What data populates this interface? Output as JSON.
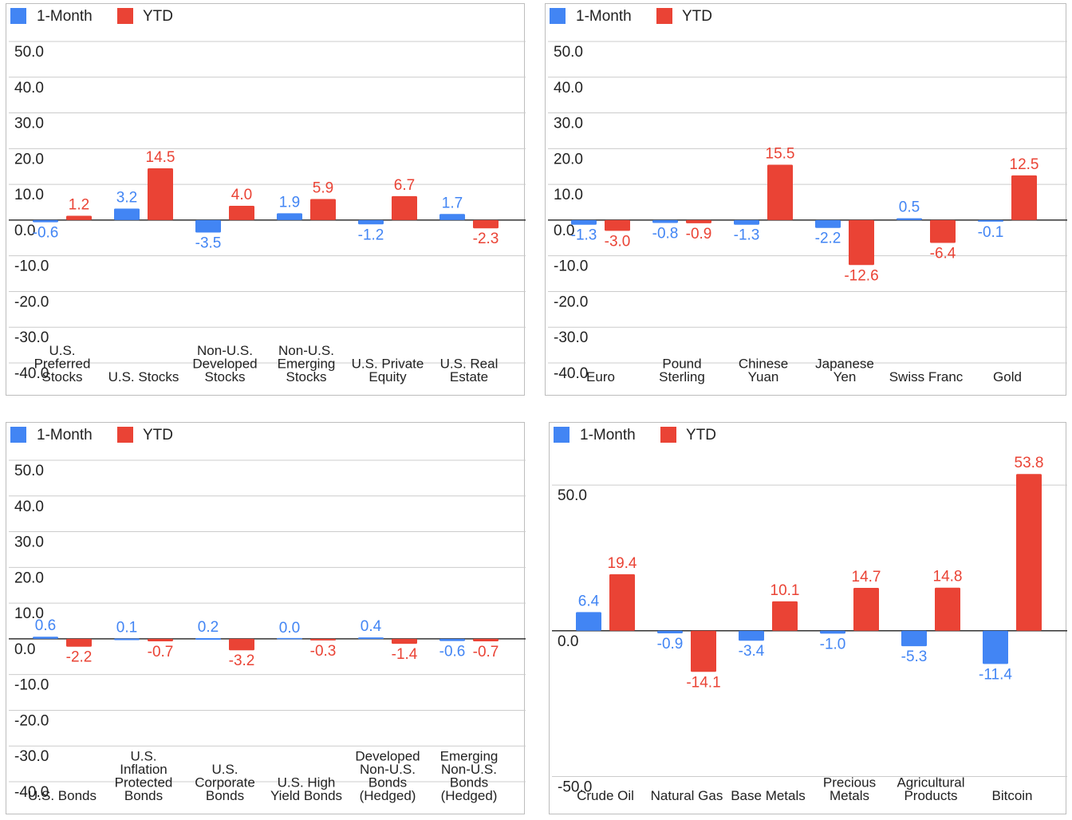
{
  "legend": {
    "series_1": "1-Month",
    "series_2": "YTD"
  },
  "colors": {
    "series_1": "#4285f4",
    "series_2": "#ea4335",
    "grid": "#cccccc",
    "zero": "#333333",
    "text": "#222222"
  },
  "chart_data": [
    {
      "type": "bar",
      "legend_position": "top-left",
      "grid": true,
      "ylim": [
        -40,
        50
      ],
      "yticks": [
        "50.0",
        "40.0",
        "30.0",
        "20.0",
        "10.0",
        "0.0",
        "-10.0",
        "-20.0",
        "-30.0",
        "-40.0"
      ],
      "categories": [
        [
          "U.S.",
          "Preferred",
          "Stocks"
        ],
        [
          "U.S. Stocks"
        ],
        [
          "Non-U.S.",
          "Developed",
          "Stocks"
        ],
        [
          "Non-U.S.",
          "Emerging",
          "Stocks"
        ],
        [
          "U.S. Private",
          "Equity"
        ],
        [
          "U.S. Real",
          "Estate"
        ]
      ],
      "series": [
        {
          "name": "1-Month",
          "values": [
            -0.6,
            3.2,
            -3.5,
            1.9,
            -1.2,
            1.7
          ],
          "labels": [
            "-0.6",
            "3.2",
            "-3.5",
            "1.9",
            "-1.2",
            "1.7"
          ]
        },
        {
          "name": "YTD",
          "values": [
            1.2,
            14.5,
            4.0,
            5.9,
            6.7,
            -2.3
          ],
          "labels": [
            "1.2",
            "14.5",
            "4.0",
            "5.9",
            "6.7",
            "-2.3"
          ]
        }
      ]
    },
    {
      "type": "bar",
      "legend_position": "top-left",
      "grid": true,
      "ylim": [
        -40,
        50
      ],
      "yticks": [
        "50.0",
        "40.0",
        "30.0",
        "20.0",
        "10.0",
        "0.0",
        "-10.0",
        "-20.0",
        "-30.0",
        "-40.0"
      ],
      "categories": [
        [
          "Euro"
        ],
        [
          "Pound",
          "Sterling"
        ],
        [
          "Chinese",
          "Yuan"
        ],
        [
          "Japanese",
          "Yen"
        ],
        [
          "Swiss Franc"
        ],
        [
          "Gold"
        ]
      ],
      "series": [
        {
          "name": "1-Month",
          "values": [
            -1.3,
            -0.8,
            -1.3,
            -2.2,
            0.5,
            -0.1
          ],
          "labels": [
            "-1.3",
            "-0.8",
            "-1.3",
            "-2.2",
            "0.5",
            "-0.1"
          ]
        },
        {
          "name": "YTD",
          "values": [
            -3.0,
            -0.9,
            15.5,
            -12.6,
            -6.4,
            12.5
          ],
          "labels": [
            "-3.0",
            "-0.9",
            "15.5",
            "-12.6",
            "-6.4",
            "12.5"
          ]
        }
      ]
    },
    {
      "type": "bar",
      "legend_position": "top-left",
      "grid": true,
      "ylim": [
        -40,
        50
      ],
      "yticks": [
        "50.0",
        "40.0",
        "30.0",
        "20.0",
        "10.0",
        "0.0",
        "-10.0",
        "-20.0",
        "-30.0",
        "-40.0"
      ],
      "categories": [
        [
          "U.S. Bonds"
        ],
        [
          "U.S.",
          "Inflation",
          "Protected",
          "Bonds"
        ],
        [
          "U.S.",
          "Corporate",
          "Bonds"
        ],
        [
          "U.S. High",
          "Yield Bonds"
        ],
        [
          "Developed",
          "Non-U.S.",
          "Bonds",
          "(Hedged)"
        ],
        [
          "Emerging",
          "Non-U.S.",
          "Bonds",
          "(Hedged)"
        ]
      ],
      "series": [
        {
          "name": "1-Month",
          "values": [
            0.6,
            0.1,
            0.2,
            0.0,
            0.4,
            -0.6
          ],
          "labels": [
            "0.6",
            "0.1",
            "0.2",
            "0.0",
            "0.4",
            "-0.6"
          ]
        },
        {
          "name": "YTD",
          "values": [
            -2.2,
            -0.7,
            -3.2,
            -0.3,
            -1.4,
            -0.7
          ],
          "labels": [
            "-2.2",
            "-0.7",
            "-3.2",
            "-0.3",
            "-1.4",
            "-0.7"
          ]
        }
      ]
    },
    {
      "type": "bar",
      "legend_position": "top-left",
      "grid": true,
      "ylim": [
        -60,
        70
      ],
      "yticks": [
        "50.0",
        "0.0",
        "-50.0"
      ],
      "categories": [
        [
          "Crude Oil"
        ],
        [
          "Natural Gas"
        ],
        [
          "Base Metals"
        ],
        [
          "Precious",
          "Metals"
        ],
        [
          "Agricultural",
          "Products"
        ],
        [
          "Bitcoin"
        ]
      ],
      "series": [
        {
          "name": "1-Month",
          "values": [
            6.4,
            -0.9,
            -3.4,
            -1.0,
            -5.3,
            -11.4
          ],
          "labels": [
            "6.4",
            "-0.9",
            "-3.4",
            "-1.0",
            "-5.3",
            "-11.4"
          ]
        },
        {
          "name": "YTD",
          "values": [
            19.4,
            -14.1,
            10.1,
            14.7,
            14.8,
            53.8
          ],
          "labels": [
            "19.4",
            "-14.1",
            "10.1",
            "14.7",
            "14.8",
            "53.8"
          ]
        }
      ]
    }
  ]
}
